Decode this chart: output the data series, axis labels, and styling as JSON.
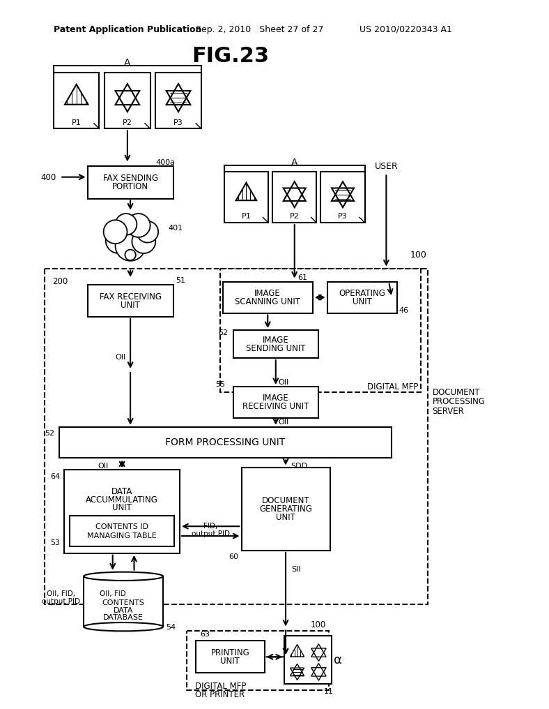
{
  "title": "FIG.23",
  "header_left": "Patent Application Publication",
  "header_mid": "Sep. 2, 2010   Sheet 27 of 27",
  "header_right": "US 2010/0220343 A1",
  "bg_color": "#ffffff"
}
